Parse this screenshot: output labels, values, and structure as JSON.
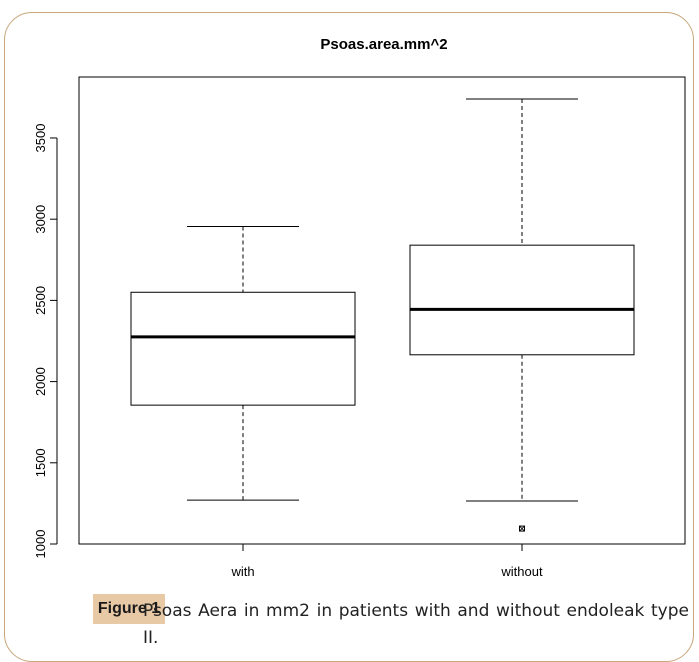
{
  "chart_data": {
    "type": "boxplot",
    "title": "Psoas.area.mm^2",
    "xlabel": "",
    "ylabel": "",
    "ylim": [
      1000,
      3750
    ],
    "yticks": [
      1000,
      1500,
      2000,
      2500,
      3000,
      3500
    ],
    "categories": [
      "with",
      "without"
    ],
    "boxes": [
      {
        "category": "with",
        "min": 1270,
        "q1": 1855,
        "median": 2275,
        "q3": 2550,
        "max": 2955,
        "outliers": []
      },
      {
        "category": "without",
        "min": 1265,
        "q1": 2165,
        "median": 2445,
        "q3": 2840,
        "max": 3740,
        "outliers": [
          1095
        ]
      }
    ]
  },
  "caption": {
    "label": "Figure 1",
    "text": "Psoas Aera in mm2 in patients with and without endoleak type II."
  }
}
